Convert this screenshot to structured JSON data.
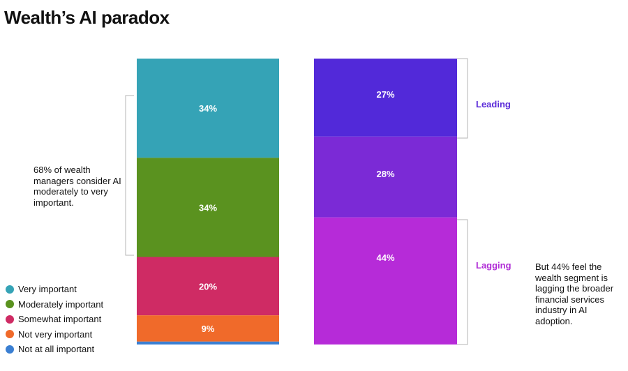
{
  "title": "Wealth’s AI paradox",
  "annotations": {
    "left_note": "68% of wealth managers consider AI moderately to very important.",
    "right_note": "But 44% feel the wealth segment is lagging the broader financial services industry in AI adoption.",
    "leading_label": "Leading",
    "lagging_label": "Lagging"
  },
  "colors": {
    "leading": "#5b2bd9",
    "lagging": "#b02dd6",
    "bracket": "#b5b5b5"
  },
  "chart_data": [
    {
      "type": "bar",
      "stacked": true,
      "title": "",
      "categories": [
        ""
      ],
      "series": [
        {
          "name": "Very important",
          "values": [
            34
          ],
          "label": "34%",
          "color": "#35a3b6"
        },
        {
          "name": "Moderately important",
          "values": [
            34
          ],
          "label": "34%",
          "color": "#5a921f"
        },
        {
          "name": "Somewhat important",
          "values": [
            20
          ],
          "label": "20%",
          "color": "#cf2b64"
        },
        {
          "name": "Not very important",
          "values": [
            9
          ],
          "label": "9%",
          "color": "#f06a2a"
        },
        {
          "name": "Not at all important",
          "values": [
            1
          ],
          "label": "",
          "color": "#3a7fd2"
        }
      ],
      "legend": "bottom-left"
    },
    {
      "type": "bar",
      "stacked": true,
      "title": "",
      "categories": [
        ""
      ],
      "series": [
        {
          "name": "",
          "values": [
            27
          ],
          "label": "27%",
          "color": "#5229d9"
        },
        {
          "name": "",
          "values": [
            28
          ],
          "label": "28%",
          "color": "#7b2ad6"
        },
        {
          "name": "",
          "values": [
            44
          ],
          "label": "44%",
          "color": "#b62bd8"
        }
      ]
    }
  ]
}
